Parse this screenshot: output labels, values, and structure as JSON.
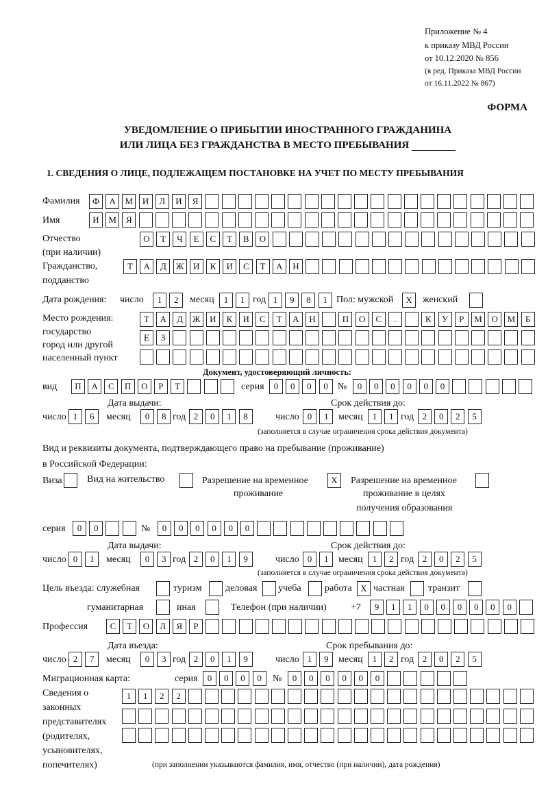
{
  "header": {
    "appendix": "Приложение № 4",
    "order": "к приказу МВД России",
    "order_date": "от 10.12.2020 № 856",
    "edit1": "(в ред. Приказа МВД России",
    "edit2": "от 16.11.2022 № 867)",
    "form": "ФОРМА",
    "title1": "УВЕДОМЛЕНИЕ О ПРИБЫТИИ ИНОСТРАННОГО ГРАЖДАНИНА",
    "title2": "ИЛИ ЛИЦА БЕЗ ГРАЖДАНСТВА В МЕСТО ПРЕБЫВАНИЯ",
    "section1": "1. СВЕДЕНИЯ О ЛИЦЕ, ПОДЛЕЖАЩЕМ ПОСТАНОВКЕ НА УЧЕТ ПО МЕСТУ ПРЕБЫВАНИЯ"
  },
  "labels": {
    "surname": "Фамилия",
    "name": "Имя",
    "patronymic1": "Отчество",
    "patronymic2": "(при наличии)",
    "citizenship1": "Гражданство,",
    "citizenship2": "подданство",
    "birth_date": "Дата рождения:",
    "day": "число",
    "month": "месяц",
    "year": "год",
    "sex_male": "Пол: мужской",
    "sex_female": "женский",
    "birthplace1": "Место рождения:",
    "birthplace2": "государство",
    "birthplace3": "город или другой",
    "birthplace4": "населенный пункт",
    "id_doc": "Документ, удостоверяющий личность:",
    "kind": "вид",
    "series": "серия",
    "number": "№",
    "issue_date": "Дата выдачи:",
    "valid_until": "Срок действия до:",
    "valid_note": "(заполняется в случае ограничения срока действия документа)",
    "right_doc1": "Вид и реквизиты документа, подтверждающего право на пребывание (проживание)",
    "right_doc2": "в Российской Федерации:",
    "visa": "Виза",
    "residence": "Вид на жительство",
    "temp_res1": "Разрешение на временное",
    "temp_res2": "проживание",
    "temp_edu1": "Разрешение на временное",
    "temp_edu2": "проживание в целях",
    "temp_edu3": "получения образования",
    "purpose": "Цель въезда: служебная",
    "tourism": "туризм",
    "business": "деловая",
    "study": "учеба",
    "work": "работа",
    "private": "частная",
    "transit": "транзит",
    "humanitarian": "гуманитарная",
    "other": "иная",
    "phone": "Телефон (при наличии)",
    "phone_prefix": "+7",
    "profession": "Профессия",
    "entry_date": "Дата въезда:",
    "stay_until": "Срок пребывания до:",
    "migration_card": "Миграционная карта:",
    "reps1": "Сведения о",
    "reps2": "законных",
    "reps3": "представителях",
    "reps4": "(родителях,",
    "reps5": "усыновителях,",
    "reps6": "попечителях)",
    "reps_note": "(при заполнении указываются фамилия, имя, отчество (при наличии), дата рождения)"
  },
  "person": {
    "surname": "ФАМИЛИЯ",
    "name": "ИМЯ",
    "patronymic": "ОТЧЕСТВО",
    "citizenship": "ТАДЖИКИСТАН",
    "birth_day": "12",
    "birth_month": "11",
    "birth_year": "1981",
    "male": "X",
    "female": "",
    "birthplace": [
      "ТАДЖИКИСТАН ПОС. КУРМОМБ",
      "ЕЗ",
      ""
    ]
  },
  "id_document": {
    "kind": "ПАСПОРТ",
    "series": "0000",
    "number": "000000",
    "issue_day": "16",
    "issue_month": "08",
    "issue_year": "2018",
    "valid_day": "01",
    "valid_month": "11",
    "valid_year": "2025"
  },
  "right_document": {
    "visa": "",
    "residence": "",
    "temp_residence": "X",
    "temp_residence_edu": "",
    "series": "00",
    "number": "000000",
    "issue_day": "01",
    "issue_month": "03",
    "issue_year": "2019",
    "valid_day": "01",
    "valid_month": "12",
    "valid_year": "2025"
  },
  "purpose": {
    "official": "",
    "tourism": "",
    "business": "",
    "study": "",
    "work": "X",
    "private": "",
    "transit": "",
    "humanitarian": "",
    "other": ""
  },
  "phone": "911000000",
  "profession": "СТОЛЯР",
  "entry": {
    "day": "27",
    "month": "03",
    "year": "2019",
    "stay_day": "19",
    "stay_month": "12",
    "stay_year": "2025"
  },
  "migration_card": {
    "series": "0000",
    "number": "000000"
  },
  "representatives": [
    "1122",
    "",
    ""
  ]
}
